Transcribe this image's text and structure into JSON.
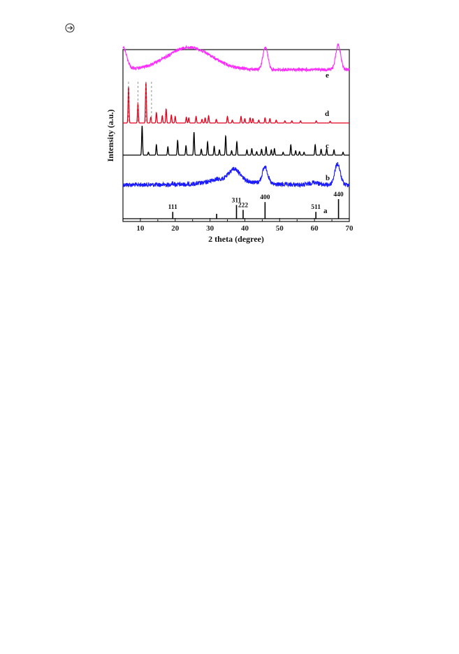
{
  "page": {
    "corner_icon": "circled-arrow-icon"
  },
  "chart_data": {
    "type": "line",
    "xlabel": "2 theta (degree)",
    "ylabel": "Intensity (a.u.)",
    "xlim": [
      5,
      70
    ],
    "x_ticks": [
      10,
      20,
      30,
      40,
      50,
      60,
      70
    ],
    "y_ticks_shown": false,
    "grid": false,
    "colors": {
      "a": "#000000",
      "b": "#1a1aff",
      "c": "#000000",
      "d": "#e8001a",
      "e": "#ff2cff"
    },
    "series": [
      {
        "name": "a",
        "style": "stick",
        "sticks": [
          {
            "x": 19.3,
            "height": 0.35,
            "hkl": "111"
          },
          {
            "x": 31.9,
            "height": 0.25,
            "hkl": ""
          },
          {
            "x": 37.6,
            "height": 0.7,
            "hkl": "311"
          },
          {
            "x": 39.5,
            "height": 0.45,
            "hkl": "222"
          },
          {
            "x": 45.8,
            "height": 0.85,
            "hkl": "400"
          },
          {
            "x": 60.4,
            "height": 0.35,
            "hkl": "511"
          },
          {
            "x": 66.9,
            "height": 1.0,
            "hkl": "440"
          }
        ]
      },
      {
        "name": "b",
        "style": "noisy",
        "baseline": 0.15,
        "peaks": [
          {
            "x": 19.3,
            "height": 0.08,
            "width": 0.6
          },
          {
            "x": 31.5,
            "height": 0.1,
            "width": 1.8
          },
          {
            "x": 37.0,
            "height": 0.65,
            "width": 2.2
          },
          {
            "x": 45.8,
            "height": 1.0,
            "width": 1.1
          },
          {
            "x": 60.0,
            "height": 0.15,
            "width": 1.5
          },
          {
            "x": 66.6,
            "height": 1.25,
            "width": 1.1
          }
        ],
        "hump": {
          "x": 36,
          "height": 0.3,
          "width": 8
        }
      },
      {
        "name": "c",
        "style": "sharp",
        "peaks": [
          {
            "x": 10.5,
            "height": 1.0
          },
          {
            "x": 12.3,
            "height": 0.1
          },
          {
            "x": 14.6,
            "height": 0.35
          },
          {
            "x": 17.9,
            "height": 0.28
          },
          {
            "x": 20.7,
            "height": 0.5
          },
          {
            "x": 23.1,
            "height": 0.32
          },
          {
            "x": 25.4,
            "height": 0.78
          },
          {
            "x": 27.5,
            "height": 0.2
          },
          {
            "x": 29.3,
            "height": 0.45
          },
          {
            "x": 31.2,
            "height": 0.3
          },
          {
            "x": 32.7,
            "height": 0.18
          },
          {
            "x": 34.5,
            "height": 0.65
          },
          {
            "x": 36.2,
            "height": 0.15
          },
          {
            "x": 37.7,
            "height": 0.45
          },
          {
            "x": 40.6,
            "height": 0.18
          },
          {
            "x": 42.0,
            "height": 0.22
          },
          {
            "x": 43.4,
            "height": 0.12
          },
          {
            "x": 44.8,
            "height": 0.2
          },
          {
            "x": 46.1,
            "height": 0.28
          },
          {
            "x": 47.6,
            "height": 0.18
          },
          {
            "x": 48.5,
            "height": 0.22
          },
          {
            "x": 51.0,
            "height": 0.1
          },
          {
            "x": 53.2,
            "height": 0.35
          },
          {
            "x": 54.6,
            "height": 0.15
          },
          {
            "x": 55.7,
            "height": 0.12
          },
          {
            "x": 57.0,
            "height": 0.1
          },
          {
            "x": 60.2,
            "height": 0.35
          },
          {
            "x": 61.9,
            "height": 0.2
          },
          {
            "x": 63.5,
            "height": 0.22
          },
          {
            "x": 65.6,
            "height": 0.18
          },
          {
            "x": 68.2,
            "height": 0.1
          }
        ]
      },
      {
        "name": "d",
        "style": "sharp",
        "peaks": [
          {
            "x": 6.6,
            "height": 1.0
          },
          {
            "x": 9.3,
            "height": 0.55
          },
          {
            "x": 11.6,
            "height": 1.12
          },
          {
            "x": 13.0,
            "height": 0.16
          },
          {
            "x": 14.6,
            "height": 0.28
          },
          {
            "x": 16.3,
            "height": 0.2
          },
          {
            "x": 17.4,
            "height": 0.38
          },
          {
            "x": 18.9,
            "height": 0.22
          },
          {
            "x": 20.0,
            "height": 0.18
          },
          {
            "x": 23.2,
            "height": 0.16
          },
          {
            "x": 23.9,
            "height": 0.14
          },
          {
            "x": 26.0,
            "height": 0.18
          },
          {
            "x": 27.7,
            "height": 0.1
          },
          {
            "x": 28.6,
            "height": 0.14
          },
          {
            "x": 29.6,
            "height": 0.2
          },
          {
            "x": 31.8,
            "height": 0.1
          },
          {
            "x": 35.0,
            "height": 0.18
          },
          {
            "x": 36.4,
            "height": 0.08
          },
          {
            "x": 38.9,
            "height": 0.18
          },
          {
            "x": 40.0,
            "height": 0.12
          },
          {
            "x": 41.5,
            "height": 0.14
          },
          {
            "x": 42.3,
            "height": 0.12
          },
          {
            "x": 44.0,
            "height": 0.08
          },
          {
            "x": 45.8,
            "height": 0.14
          },
          {
            "x": 47.2,
            "height": 0.12
          },
          {
            "x": 49.0,
            "height": 0.08
          },
          {
            "x": 51.5,
            "height": 0.06
          },
          {
            "x": 53.5,
            "height": 0.06
          },
          {
            "x": 56.0,
            "height": 0.06
          },
          {
            "x": 60.5,
            "height": 0.06
          },
          {
            "x": 64.5,
            "height": 0.05
          }
        ],
        "dashed_markers": [
          6.6,
          9.3,
          11.6,
          13.2
        ]
      },
      {
        "name": "e",
        "style": "noisy",
        "baseline": 0.35,
        "hump": {
          "x": 24,
          "height": 0.55,
          "width": 9
        },
        "start_rise": {
          "x": 5,
          "height": 0.55,
          "width": 1.5
        },
        "peaks": [
          {
            "x": 45.9,
            "height": 0.55,
            "width": 1.0
          },
          {
            "x": 66.8,
            "height": 0.62,
            "width": 1.0
          }
        ]
      }
    ]
  }
}
